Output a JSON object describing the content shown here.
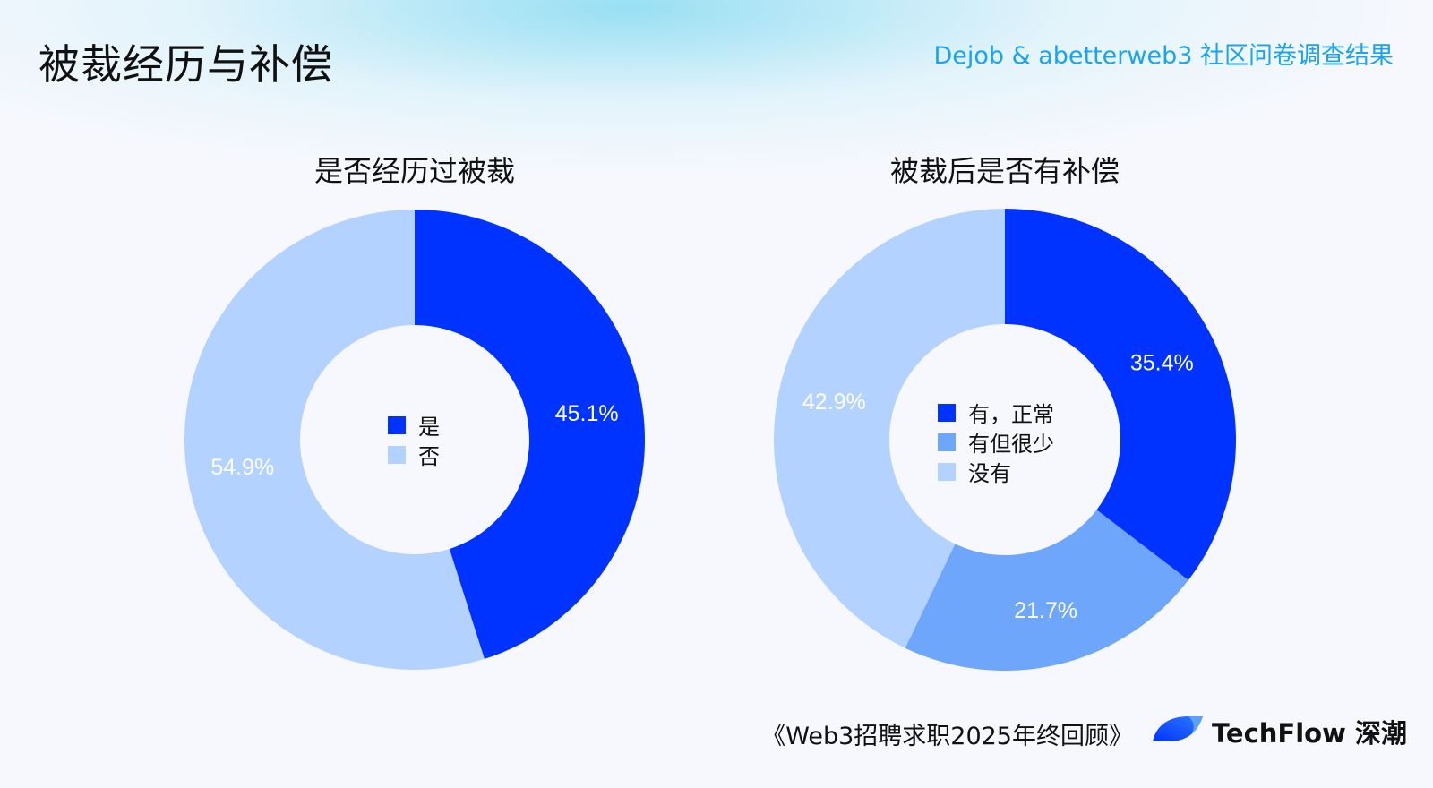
{
  "header": {
    "title": "被裁经历与补偿",
    "subtitle": "Dejob & abetterweb3 社区问卷调查结果"
  },
  "chart_data": [
    {
      "type": "pie",
      "donut": true,
      "title": "是否经历过被裁",
      "categories": [
        "是",
        "否"
      ],
      "values": [
        45.1,
        54.9
      ],
      "labels": [
        "45.1%",
        "54.9%"
      ],
      "colors": [
        "#0033ff",
        "#b4d2ff"
      ],
      "legend": "center"
    },
    {
      "type": "pie",
      "donut": true,
      "title": "被裁后是否有补偿",
      "categories": [
        "有，正常",
        "有但很少",
        "没有"
      ],
      "values": [
        35.4,
        21.7,
        42.9
      ],
      "labels": [
        "35.4%",
        "21.7%",
        "42.9%"
      ],
      "colors": [
        "#0033ff",
        "#6ea6fb",
        "#b4d2ff"
      ],
      "legend": "center"
    }
  ],
  "footer": {
    "report": "《Web3招聘求职2025年终回顾》",
    "brand": "TechFlow 深潮"
  }
}
